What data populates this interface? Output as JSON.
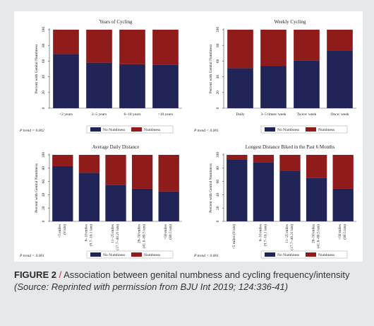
{
  "colors": {
    "numbness": "#8f1b1b",
    "no_numbness": "#212457"
  },
  "legend": {
    "no_numbness": "No Numbness",
    "numbness": "Numbness"
  },
  "caption": {
    "label": "FIGURE 2",
    "separator": "/",
    "text": "Association between genital numbness and cycling frequency/intensity",
    "source": "(Source: Reprinted with permission from BJU Int 2019; 124:336-41)"
  },
  "chart_data": [
    {
      "type": "bar",
      "stacked": true,
      "title": "Years of Cycling",
      "ylabel": "Percent with Genital Numbness",
      "ylim": [
        0,
        100
      ],
      "yticks": [
        "0",
        "20",
        "40",
        "60",
        "80",
        "100"
      ],
      "categories": [
        "<2 years",
        "2–5 years",
        "6–10 years",
        ">10 years"
      ],
      "rotate_labels": false,
      "series": [
        {
          "name": "No Numbness",
          "values": [
            69,
            58,
            56,
            55
          ]
        },
        {
          "name": "Numbness",
          "values": [
            31,
            42,
            44,
            45
          ]
        }
      ],
      "p_trend": "P trend = 0.002"
    },
    {
      "type": "bar",
      "stacked": true,
      "title": "Weekly Cycling",
      "ylabel": "Percent with Genital Numbness",
      "ylim": [
        0,
        100
      ],
      "yticks": [
        "0",
        "20",
        "40",
        "60",
        "80",
        "100"
      ],
      "categories": [
        "Daily",
        "3–5 times/ week",
        "Twice/ week",
        "Once/ week"
      ],
      "rotate_labels": false,
      "series": [
        {
          "name": "No Numbness",
          "values": [
            51,
            54,
            61,
            73
          ]
        },
        {
          "name": "Numbness",
          "values": [
            49,
            46,
            39,
            27
          ]
        }
      ],
      "p_trend": "P trend < 0.001"
    },
    {
      "type": "bar",
      "stacked": true,
      "title": "Average Daily Distance",
      "ylabel": "Percent with Genital Numbness",
      "ylim": [
        0,
        100
      ],
      "yticks": [
        "0",
        "20",
        "40",
        "60",
        "80",
        "100"
      ],
      "categories": [
        [
          "<5 miles",
          "(8 km)"
        ],
        [
          "6–10 miles",
          "(9.7–16.1 km)"
        ],
        [
          "11–25 miles",
          "(17.7–40.21 km)"
        ],
        [
          "26–50 miles",
          "(41.8–80.5 km)"
        ],
        [
          ">50 miles",
          "(80.5 km)"
        ]
      ],
      "rotate_labels": true,
      "series": [
        {
          "name": "No Numbness",
          "values": [
            83,
            73,
            55,
            49,
            45
          ]
        },
        {
          "name": "Numbness",
          "values": [
            17,
            27,
            45,
            51,
            55
          ]
        }
      ],
      "p_trend": "P trend < 0.001"
    },
    {
      "type": "bar",
      "stacked": true,
      "title": "Longest Distance Biked in the Past 6 Months",
      "ylabel": "Percent with Genital Numbness",
      "ylim": [
        0,
        100
      ],
      "yticks": [
        "0",
        "20",
        "40",
        "60",
        "80",
        "100"
      ],
      "categories": [
        [
          "<5 miles (8 km)"
        ],
        [
          "6–10 miles",
          "(9.7–16.1 km)"
        ],
        [
          "11–25 miles",
          "(17.7–40.21 km)"
        ],
        [
          "26–50 miles",
          "(41.8–80.5 km)"
        ],
        [
          ">50 miles",
          "(80.5 km)"
        ]
      ],
      "rotate_labels": true,
      "series": [
        {
          "name": "No Numbness",
          "values": [
            93,
            89,
            76,
            65,
            49
          ]
        },
        {
          "name": "Numbness",
          "values": [
            7,
            11,
            24,
            35,
            51
          ]
        }
      ],
      "p_trend": "P trend < 0.001"
    }
  ]
}
